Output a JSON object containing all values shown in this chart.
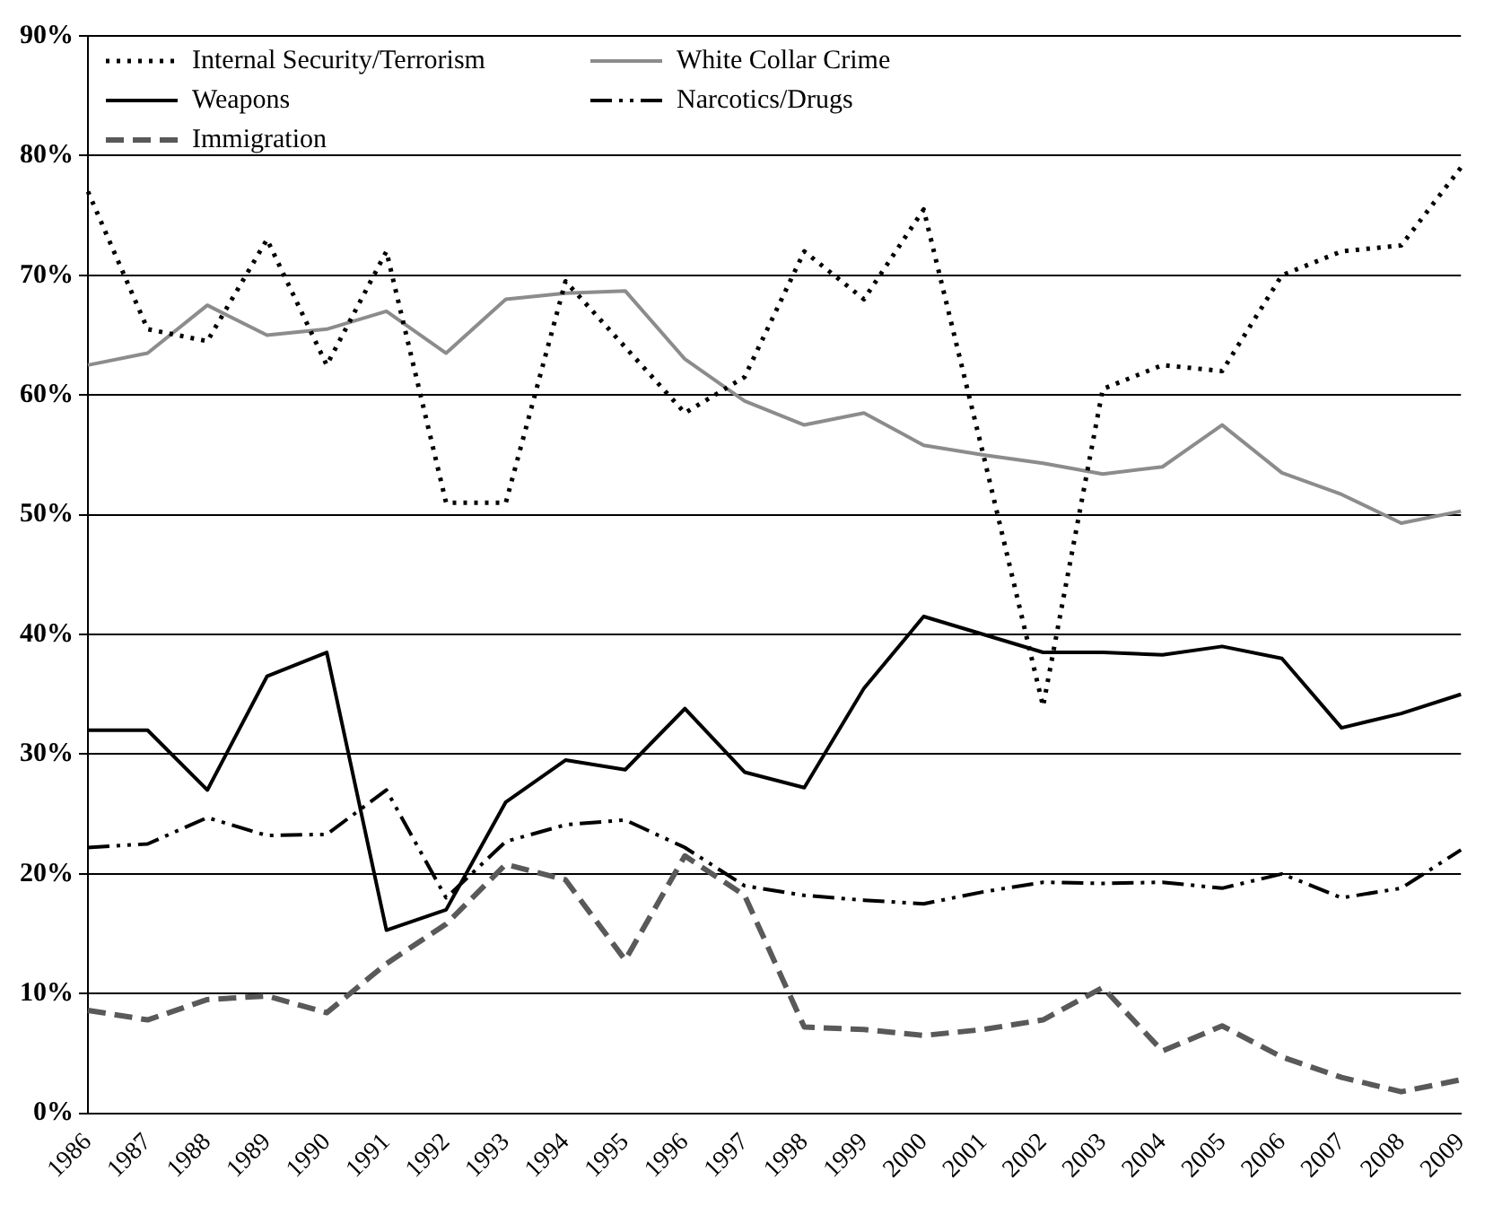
{
  "chart_data": {
    "type": "line",
    "categories": [
      "1986",
      "1987",
      "1988",
      "1989",
      "1990",
      "1991",
      "1992",
      "1993",
      "1994",
      "1995",
      "1996",
      "1997",
      "1998",
      "1999",
      "2000",
      "2001",
      "2002",
      "2003",
      "2004",
      "2005",
      "2006",
      "2007",
      "2008",
      "2009"
    ],
    "ylim": [
      0,
      90
    ],
    "yticks": [
      {
        "value": 0,
        "label": "0%"
      },
      {
        "value": 10,
        "label": "10%"
      },
      {
        "value": 20,
        "label": "20%"
      },
      {
        "value": 30,
        "label": "30%"
      },
      {
        "value": 40,
        "label": "40%"
      },
      {
        "value": 50,
        "label": "50%"
      },
      {
        "value": 60,
        "label": "60%"
      },
      {
        "value": 70,
        "label": "70%"
      },
      {
        "value": 80,
        "label": "80%"
      },
      {
        "value": 90,
        "label": "90%"
      }
    ],
    "grid": "y",
    "legend": "top left",
    "marker": "none",
    "series": [
      {
        "name": "Internal Security/Terrorism",
        "color": "#000000",
        "line_style": "dotted",
        "values": [
          77,
          65.5,
          64.5,
          73,
          62.5,
          72,
          51,
          51,
          69.5,
          64,
          58.5,
          61.5,
          72,
          68,
          75.5,
          55,
          34,
          60.5,
          62.5,
          62,
          70,
          72,
          72.5,
          79
        ]
      },
      {
        "name": "White Collar Crime",
        "color": "#8c8c8c",
        "line_style": "solid",
        "values": [
          62.5,
          63.5,
          67.5,
          65,
          65.5,
          67,
          63.5,
          68,
          68.5,
          68.7,
          63,
          59.5,
          57.5,
          58.5,
          55.8,
          55,
          54.3,
          53.4,
          54,
          57.5,
          53.5,
          51.7,
          49.3,
          50.3
        ]
      },
      {
        "name": "Weapons",
        "color": "#000000",
        "line_style": "solid",
        "values": [
          32,
          32,
          27,
          36.5,
          38.5,
          15.3,
          17,
          26,
          29.5,
          28.7,
          33.8,
          28.5,
          27.2,
          35.5,
          41.5,
          40,
          38.5,
          38.5,
          38.3,
          39,
          38,
          32.2,
          33.4,
          35
        ]
      },
      {
        "name": "Narcotics/Drugs",
        "color": "#000000",
        "line_style": "dashdot",
        "values": [
          22.2,
          22.5,
          24.7,
          23.2,
          23.3,
          27,
          18,
          22.7,
          24.1,
          24.5,
          22.2,
          19,
          18.2,
          17.8,
          17.5,
          18.5,
          19.3,
          19.2,
          19.3,
          18.8,
          20,
          18,
          18.8,
          22
        ]
      },
      {
        "name": "Immigration",
        "color": "#595959",
        "line_style": "dashed",
        "values": [
          8.6,
          7.8,
          9.5,
          9.8,
          8.4,
          12.5,
          15.8,
          20.8,
          19.5,
          12.8,
          21.5,
          18.2,
          7.2,
          7,
          6.5,
          7,
          7.8,
          10.5,
          5.2,
          7.3,
          4.7,
          3,
          1.8,
          2.8
        ]
      }
    ]
  }
}
